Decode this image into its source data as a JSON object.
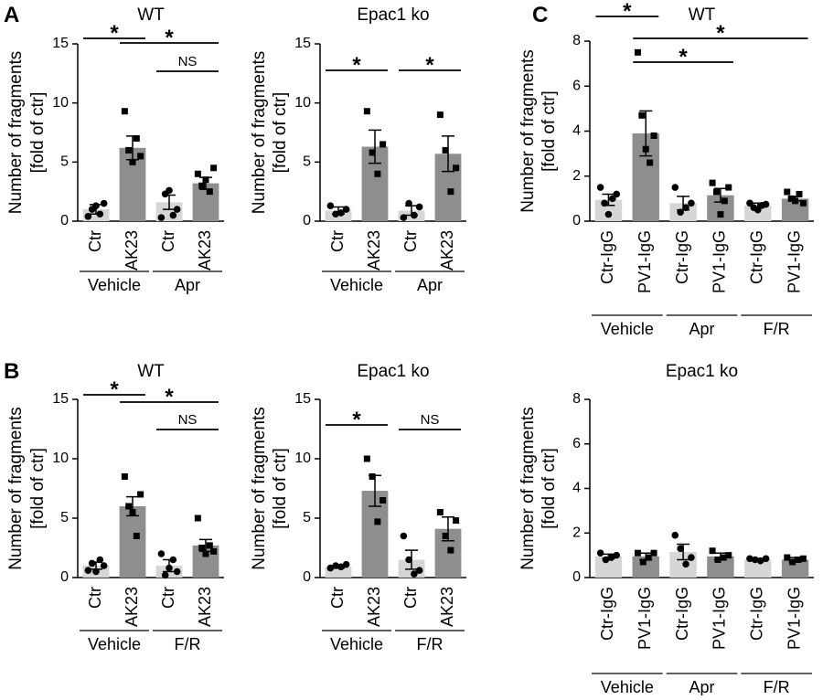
{
  "chart_data": [
    {
      "type": "bar",
      "panel_label": "A",
      "title": "WT",
      "ylabel": [
        "Number of fragments",
        "[fold of ctr]"
      ],
      "categories": [
        "Ctr",
        "AK23",
        "Ctr",
        "AK23"
      ],
      "groups": [
        "Vehicle",
        "Apr"
      ],
      "values": [
        1.0,
        6.2,
        1.6,
        3.2
      ],
      "errors": [
        0.4,
        1.0,
        0.6,
        0.5
      ],
      "points": [
        [
          0.4,
          1.0,
          1.3,
          0.6,
          1.5
        ],
        [
          9.3,
          6.0,
          5.0,
          7.0,
          5.5
        ],
        [
          0.3,
          2.3,
          2.6,
          0.5,
          1.0
        ],
        [
          4.0,
          3.0,
          3.5,
          2.5,
          4.5
        ]
      ],
      "colors": [
        "#d6d6d6",
        "#8e8e8e",
        "#d6d6d6",
        "#8e8e8e"
      ],
      "markers": [
        "circle",
        "square",
        "circle",
        "square"
      ],
      "annotations": [
        {
          "label": "*",
          "from": 0,
          "to": 1
        },
        {
          "label": "*",
          "from": 1,
          "to": 3
        },
        {
          "label": "NS",
          "from": 2,
          "to": 3
        }
      ],
      "ylim": [
        0,
        15
      ],
      "yticks": [
        0,
        5,
        10,
        15
      ]
    },
    {
      "type": "bar",
      "title": "Epac1 ko",
      "ylabel": [
        "Number of fragments",
        "[fold of ctr]"
      ],
      "categories": [
        "Ctr",
        "AK23",
        "Ctr",
        "AK23"
      ],
      "groups": [
        "Vehicle",
        "Apr"
      ],
      "values": [
        0.9,
        6.3,
        0.9,
        5.7
      ],
      "errors": [
        0.3,
        1.4,
        0.4,
        1.5
      ],
      "points": [
        [
          1.3,
          0.6,
          0.7,
          1.0
        ],
        [
          9.3,
          5.8,
          4.0,
          6.5
        ],
        [
          0.3,
          1.5,
          0.5,
          1.2
        ],
        [
          9.0,
          6.0,
          2.5,
          4.5
        ]
      ],
      "colors": [
        "#d6d6d6",
        "#8e8e8e",
        "#d6d6d6",
        "#8e8e8e"
      ],
      "markers": [
        "circle",
        "square",
        "circle",
        "square"
      ],
      "annotations": [
        {
          "label": "*",
          "from": 0,
          "to": 1
        },
        {
          "label": "*",
          "from": 2,
          "to": 3
        }
      ],
      "ylim": [
        0,
        15
      ],
      "yticks": [
        0,
        5,
        10,
        15
      ]
    },
    {
      "type": "bar",
      "panel_label": "C",
      "title": "WT",
      "ylabel": [
        "Number of fragments",
        "[fold of ctr]"
      ],
      "categories": [
        "Ctr-IgG",
        "PV1-IgG",
        "Ctr-IgG",
        "PV1-IgG",
        "Ctr-IgG",
        "PV1-IgG"
      ],
      "groups": [
        "Vehicle",
        "Apr",
        "F/R"
      ],
      "values": [
        0.95,
        3.9,
        0.8,
        1.15,
        0.7,
        1.0
      ],
      "errors": [
        0.25,
        1.0,
        0.3,
        0.3,
        0.1,
        0.1
      ],
      "points": [
        [
          1.5,
          0.8,
          0.3,
          1.0,
          1.2
        ],
        [
          7.5,
          4.7,
          3.2,
          2.6,
          3.8
        ],
        [
          1.5,
          0.4,
          0.6,
          0.8
        ],
        [
          1.7,
          1.3,
          0.3,
          0.9,
          1.5
        ],
        [
          0.8,
          0.6,
          0.5,
          0.7,
          0.75
        ],
        [
          1.3,
          1.0,
          0.9,
          1.2,
          0.8
        ]
      ],
      "colors": [
        "#d6d6d6",
        "#8e8e8e",
        "#d6d6d6",
        "#8e8e8e",
        "#d6d6d6",
        "#8e8e8e"
      ],
      "markers": [
        "circle",
        "square",
        "circle",
        "square",
        "circle",
        "square"
      ],
      "annotations": [
        {
          "label": "*",
          "from": 0,
          "to": 1
        },
        {
          "label": "*",
          "from": 1,
          "to": 5
        },
        {
          "label": "*",
          "from": 1,
          "to": 3
        }
      ],
      "ylim": [
        0,
        8
      ],
      "yticks": [
        0,
        2,
        4,
        6,
        8
      ]
    },
    {
      "type": "bar",
      "panel_label": "B",
      "title": "WT",
      "ylabel": [
        "Number of fragments",
        "[fold of ctr]"
      ],
      "categories": [
        "Ctr",
        "AK23",
        "Ctr",
        "AK23"
      ],
      "groups": [
        "Vehicle",
        "F/R"
      ],
      "values": [
        1.0,
        6.0,
        1.0,
        2.7
      ],
      "errors": [
        0.3,
        0.8,
        0.5,
        0.5
      ],
      "points": [
        [
          0.6,
          1.2,
          0.5,
          1.5,
          1.0
        ],
        [
          8.5,
          6.0,
          5.5,
          3.5,
          7.0
        ],
        [
          2.0,
          0.2,
          0.8,
          1.5,
          0.5
        ],
        [
          5.0,
          2.5,
          2.0,
          2.7,
          2.2
        ]
      ],
      "colors": [
        "#d6d6d6",
        "#8e8e8e",
        "#d6d6d6",
        "#8e8e8e"
      ],
      "markers": [
        "circle",
        "square",
        "circle",
        "square"
      ],
      "annotations": [
        {
          "label": "*",
          "from": 0,
          "to": 1
        },
        {
          "label": "*",
          "from": 1,
          "to": 3
        },
        {
          "label": "NS",
          "from": 2,
          "to": 3
        }
      ],
      "ylim": [
        0,
        15
      ],
      "yticks": [
        0,
        5,
        10,
        15
      ]
    },
    {
      "type": "bar",
      "title": "Epac1 ko",
      "ylabel": [
        "Number of fragments",
        "[fold of ctr]"
      ],
      "categories": [
        "Ctr",
        "AK23",
        "Ctr",
        "AK23"
      ],
      "groups": [
        "Vehicle",
        "F/R"
      ],
      "values": [
        0.9,
        7.3,
        1.5,
        4.1
      ],
      "errors": [
        0.1,
        1.3,
        0.8,
        1.0
      ],
      "points": [
        [
          0.8,
          1.0,
          0.9,
          1.1
        ],
        [
          10.0,
          8.5,
          4.7,
          6.5
        ],
        [
          3.5,
          1.5,
          0.3,
          0.6
        ],
        [
          5.5,
          3.5,
          2.3,
          4.8
        ]
      ],
      "colors": [
        "#d6d6d6",
        "#8e8e8e",
        "#d6d6d6",
        "#8e8e8e"
      ],
      "markers": [
        "circle",
        "square",
        "circle",
        "square"
      ],
      "annotations": [
        {
          "label": "*",
          "from": 0,
          "to": 1
        },
        {
          "label": "NS",
          "from": 2,
          "to": 3
        }
      ],
      "ylim": [
        0,
        15
      ],
      "yticks": [
        0,
        5,
        10,
        15
      ]
    },
    {
      "type": "bar",
      "title": "Epac1 ko",
      "ylabel": [
        "Number of fragments",
        "[fold of ctr]"
      ],
      "categories": [
        "Ctr-IgG",
        "PV1-IgG",
        "Ctr-IgG",
        "PV1-IgG",
        "Ctr-IgG",
        "PV1-IgG"
      ],
      "groups": [
        "Vehicle",
        "Apr",
        "F/R"
      ],
      "values": [
        0.95,
        0.95,
        1.15,
        0.95,
        0.8,
        0.8
      ],
      "errors": [
        0.1,
        0.15,
        0.35,
        0.15,
        0.05,
        0.1
      ],
      "points": [
        [
          1.1,
          0.8,
          0.9,
          1.0
        ],
        [
          1.1,
          0.7,
          0.9,
          1.1
        ],
        [
          1.9,
          1.3,
          0.6,
          0.9
        ],
        [
          1.2,
          0.8,
          0.9,
          1.0
        ],
        [
          0.85,
          0.8,
          0.75,
          0.85
        ],
        [
          0.9,
          0.7,
          0.8,
          0.85
        ]
      ],
      "colors": [
        "#d6d6d6",
        "#8e8e8e",
        "#d6d6d6",
        "#8e8e8e",
        "#d6d6d6",
        "#8e8e8e"
      ],
      "markers": [
        "circle",
        "square",
        "circle",
        "square",
        "circle",
        "square"
      ],
      "ylim": [
        0,
        8
      ],
      "yticks": [
        0,
        2,
        4,
        6,
        8
      ]
    }
  ]
}
